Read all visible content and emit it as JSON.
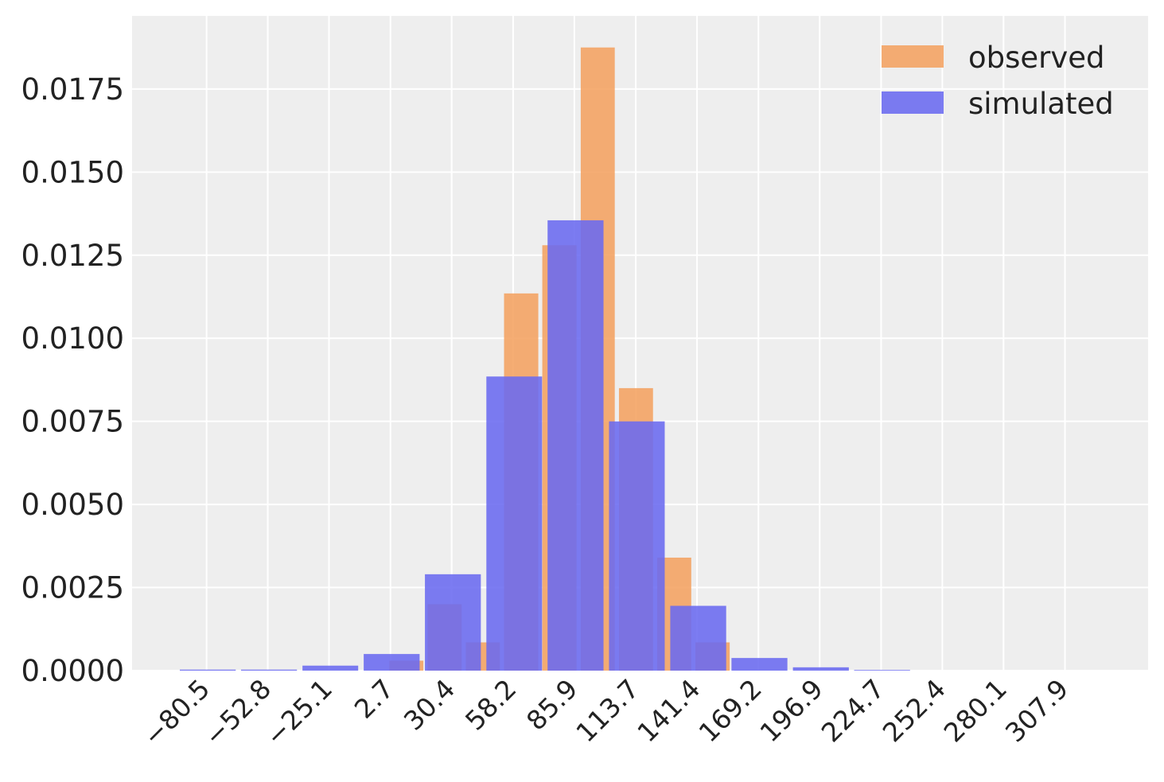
{
  "chart_data": {
    "type": "bar",
    "title": "",
    "xlabel": "",
    "ylabel": "",
    "xlim": [
      -114.2,
      345.5
    ],
    "ylim": [
      0,
      0.0197
    ],
    "y_ticks": [
      0.0,
      0.0025,
      0.005,
      0.0075,
      0.01,
      0.0125,
      0.015,
      0.0175
    ],
    "y_tick_labels": [
      "0.0000",
      "0.0025",
      "0.0050",
      "0.0075",
      "0.0100",
      "0.0125",
      "0.0150",
      "0.0175"
    ],
    "x_ticks": [
      -80.5,
      -52.8,
      -25.1,
      2.7,
      30.4,
      58.2,
      85.9,
      113.7,
      141.4,
      169.2,
      196.9,
      224.7,
      252.4,
      280.1,
      307.9
    ],
    "x_tick_labels": [
      "−80.5",
      "−52.8",
      "−25.1",
      "2.7",
      "30.4",
      "58.2",
      "85.9",
      "113.7",
      "141.4",
      "169.2",
      "196.9",
      "224.7",
      "252.4",
      "280.1",
      "307.9"
    ],
    "grid": true,
    "legend_position": "top-right",
    "series": [
      {
        "name": "observed",
        "color": "#f4a261",
        "bars": [
          {
            "x0": 2.2,
            "x1": 17.6,
            "value": 0.0003
          },
          {
            "x0": 19.5,
            "x1": 34.9,
            "value": 0.002
          },
          {
            "x0": 36.8,
            "x1": 52.2,
            "value": 0.00085
          },
          {
            "x0": 54.1,
            "x1": 69.6,
            "value": 0.01135
          },
          {
            "x0": 71.4,
            "x1": 86.9,
            "value": 0.0128
          },
          {
            "x0": 88.8,
            "x1": 104.2,
            "value": 0.01875
          },
          {
            "x0": 106.1,
            "x1": 121.5,
            "value": 0.0085
          },
          {
            "x0": 123.4,
            "x1": 138.8,
            "value": 0.0034
          },
          {
            "x0": 140.7,
            "x1": 156.2,
            "value": 0.00085
          }
        ]
      },
      {
        "name": "simulated",
        "color": "#6a6af0",
        "bars": [
          {
            "x0": -92.6,
            "x1": -67.3,
            "value": 3e-05
          },
          {
            "x0": -64.9,
            "x1": -39.6,
            "value": 3e-05
          },
          {
            "x0": -37.1,
            "x1": -11.9,
            "value": 0.00015
          },
          {
            "x0": -9.4,
            "x1": 15.9,
            "value": 0.0005
          },
          {
            "x0": 18.3,
            "x1": 43.6,
            "value": 0.0029
          },
          {
            "x0": 46.1,
            "x1": 71.3,
            "value": 0.00885
          },
          {
            "x0": 73.8,
            "x1": 99.1,
            "value": 0.01355
          },
          {
            "x0": 101.6,
            "x1": 126.8,
            "value": 0.0075
          },
          {
            "x0": 129.3,
            "x1": 154.6,
            "value": 0.00195
          },
          {
            "x0": 157.0,
            "x1": 182.3,
            "value": 0.00038
          },
          {
            "x0": 184.8,
            "x1": 210.1,
            "value": 0.0001
          },
          {
            "x0": 212.5,
            "x1": 237.8,
            "value": 2e-05
          }
        ]
      }
    ]
  }
}
